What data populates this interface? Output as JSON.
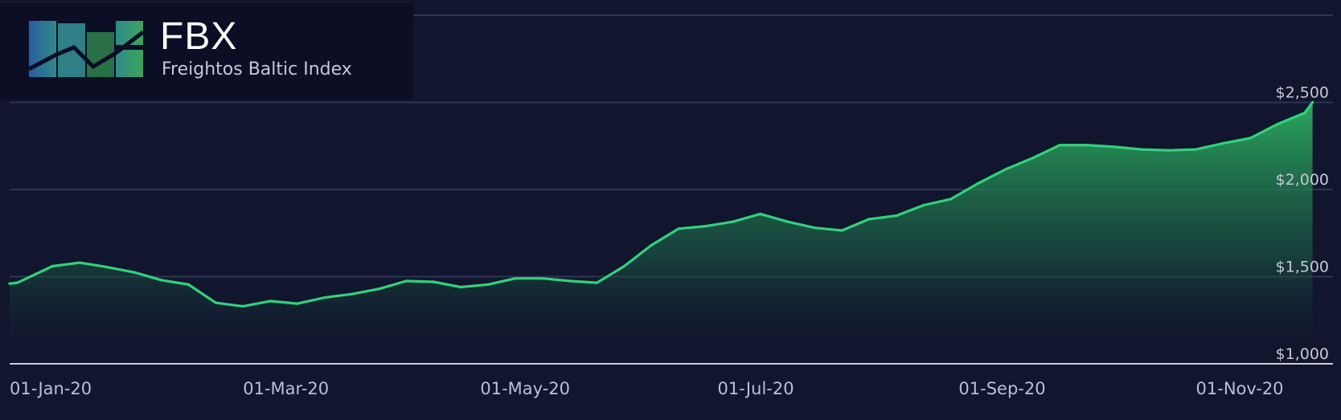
{
  "brand": {
    "title": "FBX",
    "subtitle": "Freightos Baltic Index",
    "logo_icon": "fbx-chart-logo-icon"
  },
  "colors": {
    "background": "#11152e",
    "logo_background": "#0b0e25",
    "line": "#33d17a",
    "area_top": "#2aa85e",
    "gridline": "#2e3454",
    "axis": "#c8ccdc"
  },
  "chart_data": {
    "type": "area",
    "x_axis_ticks": [
      "01-Jan-20",
      "01-Mar-20",
      "01-May-20",
      "01-Jul-20",
      "01-Sep-20",
      "01-Nov-20"
    ],
    "y_axis_ticks": [
      "$1,000",
      "$1,500",
      "$2,000",
      "$2,500"
    ],
    "ylim": [
      1000,
      3000
    ],
    "xlim": [
      "2020-01-01",
      "2020-12-05"
    ],
    "grid": true,
    "series": [
      {
        "points": [
          [
            "2020-01-01",
            1460
          ],
          [
            "2020-01-03",
            1465
          ],
          [
            "2020-01-12",
            1560
          ],
          [
            "2020-01-19",
            1580
          ],
          [
            "2020-01-26",
            1555
          ],
          [
            "2020-02-02",
            1525
          ],
          [
            "2020-02-09",
            1480
          ],
          [
            "2020-02-16",
            1455
          ],
          [
            "2020-02-23",
            1350
          ],
          [
            "2020-03-01",
            1330
          ],
          [
            "2020-03-08",
            1360
          ],
          [
            "2020-03-15",
            1345
          ],
          [
            "2020-03-22",
            1380
          ],
          [
            "2020-03-29",
            1400
          ],
          [
            "2020-04-05",
            1430
          ],
          [
            "2020-04-12",
            1475
          ],
          [
            "2020-04-19",
            1470
          ],
          [
            "2020-04-26",
            1440
          ],
          [
            "2020-05-03",
            1455
          ],
          [
            "2020-05-10",
            1490
          ],
          [
            "2020-05-17",
            1490
          ],
          [
            "2020-05-24",
            1475
          ],
          [
            "2020-05-31",
            1465
          ],
          [
            "2020-06-07",
            1560
          ],
          [
            "2020-06-14",
            1680
          ],
          [
            "2020-06-21",
            1775
          ],
          [
            "2020-06-28",
            1790
          ],
          [
            "2020-07-05",
            1815
          ],
          [
            "2020-07-12",
            1860
          ],
          [
            "2020-07-19",
            1815
          ],
          [
            "2020-07-26",
            1780
          ],
          [
            "2020-08-02",
            1765
          ],
          [
            "2020-08-09",
            1830
          ],
          [
            "2020-08-16",
            1850
          ],
          [
            "2020-08-23",
            1910
          ],
          [
            "2020-08-30",
            1945
          ],
          [
            "2020-09-06",
            2035
          ],
          [
            "2020-09-13",
            2115
          ],
          [
            "2020-09-20",
            2180
          ],
          [
            "2020-09-27",
            2255
          ],
          [
            "2020-10-04",
            2255
          ],
          [
            "2020-10-11",
            2245
          ],
          [
            "2020-10-18",
            2230
          ],
          [
            "2020-10-25",
            2225
          ],
          [
            "2020-11-01",
            2230
          ],
          [
            "2020-11-08",
            2265
          ],
          [
            "2020-11-15",
            2295
          ],
          [
            "2020-11-22",
            2375
          ],
          [
            "2020-11-29",
            2440
          ],
          [
            "2020-12-01",
            2500
          ]
        ]
      }
    ]
  }
}
